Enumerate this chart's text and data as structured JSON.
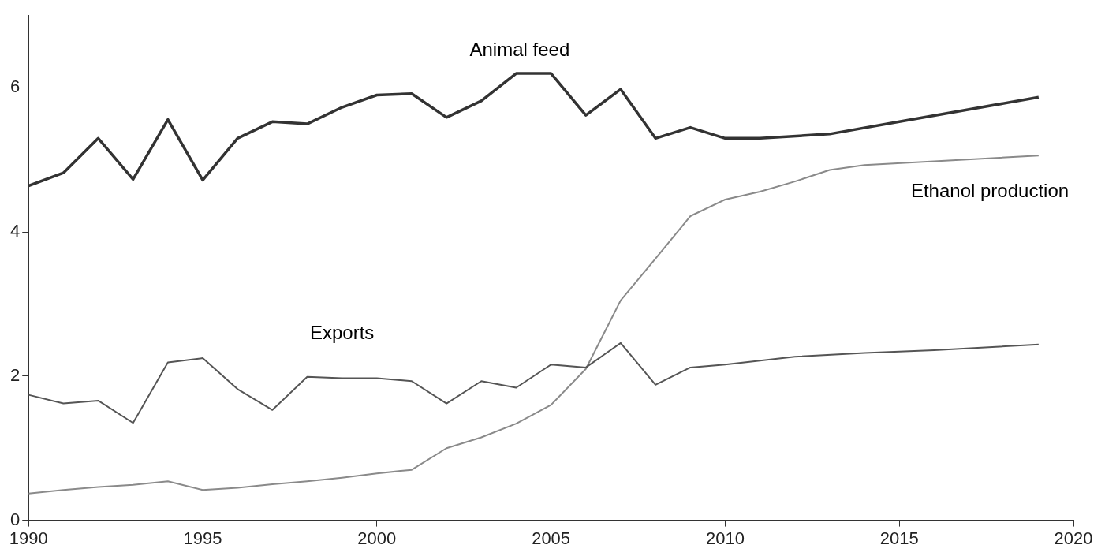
{
  "chart_data": {
    "type": "line",
    "xlim": [
      1990,
      2020
    ],
    "xticks": [
      1990,
      1995,
      2000,
      2005,
      2010,
      2015,
      2020
    ],
    "ylim": [
      0,
      7
    ],
    "yticks": [
      0,
      2,
      4,
      6
    ],
    "grid": false,
    "legend": false,
    "marker": "none",
    "line_style": "solid",
    "series": [
      {
        "name": "Animal feed",
        "color": "#333333",
        "x": [
          1990,
          1991,
          1992,
          1993,
          1994,
          1995,
          1996,
          1997,
          1998,
          1999,
          2000,
          2001,
          2002,
          2003,
          2004,
          2005,
          2006,
          2007,
          2008,
          2009,
          2010,
          2011,
          2013,
          2015,
          2017,
          2019
        ],
        "values": [
          4.64,
          4.82,
          5.3,
          4.73,
          5.56,
          4.72,
          5.3,
          5.53,
          5.5,
          5.73,
          5.9,
          5.92,
          5.59,
          5.82,
          6.2,
          6.2,
          5.62,
          5.98,
          5.3,
          5.45,
          5.3,
          5.3,
          5.36,
          5.53,
          5.7,
          5.87
        ]
      },
      {
        "name": "Exports",
        "color": "#555555",
        "x": [
          1990,
          1991,
          1992,
          1993,
          1994,
          1995,
          1996,
          1997,
          1998,
          1999,
          2000,
          2001,
          2002,
          2003,
          2004,
          2005,
          2006,
          2007,
          2008,
          2009,
          2010,
          2012,
          2014,
          2016,
          2019
        ],
        "values": [
          1.74,
          1.62,
          1.66,
          1.35,
          2.19,
          2.25,
          1.82,
          1.53,
          1.99,
          1.97,
          1.97,
          1.93,
          1.62,
          1.93,
          1.84,
          2.16,
          2.12,
          2.46,
          1.88,
          2.12,
          2.16,
          2.27,
          2.32,
          2.36,
          2.44
        ]
      },
      {
        "name": "Ethanol production",
        "color": "#8a8a8a",
        "x": [
          1990,
          1991,
          1992,
          1993,
          1994,
          1995,
          1996,
          1997,
          1998,
          1999,
          2000,
          2001,
          2002,
          2003,
          2004,
          2005,
          2006,
          2007,
          2008,
          2009,
          2010,
          2011,
          2012,
          2013,
          2014,
          2016,
          2019
        ],
        "values": [
          0.37,
          0.42,
          0.46,
          0.49,
          0.54,
          0.42,
          0.45,
          0.5,
          0.54,
          0.59,
          0.65,
          0.7,
          1.0,
          1.15,
          1.34,
          1.6,
          2.1,
          3.05,
          3.63,
          4.22,
          4.45,
          4.56,
          4.7,
          4.86,
          4.93,
          4.98,
          5.06
        ]
      }
    ]
  }
}
